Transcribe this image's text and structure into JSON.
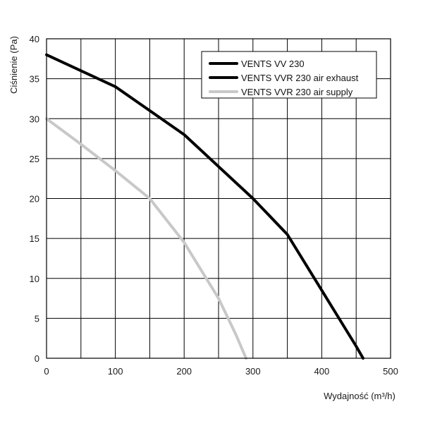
{
  "chart_data": {
    "type": "line",
    "xlabel": "Wydajność (m³/h)",
    "ylabel": "Ciśnienie (Pa)",
    "xlim": [
      0,
      500
    ],
    "ylim": [
      0,
      40
    ],
    "x_ticks": [
      "0",
      "100",
      "200",
      "300",
      "400",
      "500"
    ],
    "y_ticks": [
      "0",
      "5",
      "10",
      "15",
      "20",
      "25",
      "30",
      "35",
      "40"
    ],
    "x_tick_values": [
      0,
      100,
      200,
      300,
      400,
      500
    ],
    "y_tick_values": [
      0,
      5,
      10,
      15,
      20,
      25,
      30,
      35,
      40
    ],
    "x_grid_step": 50,
    "y_grid_step": 5,
    "grid": true,
    "legend_position": "top-right",
    "series": [
      {
        "name": "VENTS VV 230",
        "color": "#000000",
        "points": [
          [
            0,
            38
          ],
          [
            50,
            36
          ],
          [
            100,
            34
          ],
          [
            150,
            31
          ],
          [
            200,
            28
          ],
          [
            250,
            24
          ],
          [
            300,
            20
          ],
          [
            350,
            15.5
          ],
          [
            400,
            8.5
          ],
          [
            450,
            1.5
          ],
          [
            460,
            0
          ]
        ]
      },
      {
        "name": "VENTS VVR 230 air exhaust",
        "color": "#000000",
        "points": [
          [
            0,
            38
          ],
          [
            50,
            36
          ],
          [
            100,
            34
          ],
          [
            150,
            31
          ],
          [
            200,
            28
          ],
          [
            250,
            24
          ],
          [
            300,
            20
          ],
          [
            350,
            15.5
          ],
          [
            400,
            8.5
          ],
          [
            450,
            1.5
          ],
          [
            460,
            0
          ]
        ]
      },
      {
        "name": "VENTS VVR 230 air supply",
        "color": "#c8c8c8",
        "points": [
          [
            0,
            30
          ],
          [
            50,
            26.8
          ],
          [
            100,
            23.5
          ],
          [
            150,
            20
          ],
          [
            200,
            14.5
          ],
          [
            250,
            7.5
          ],
          [
            275,
            3
          ],
          [
            290,
            0
          ]
        ]
      }
    ]
  }
}
